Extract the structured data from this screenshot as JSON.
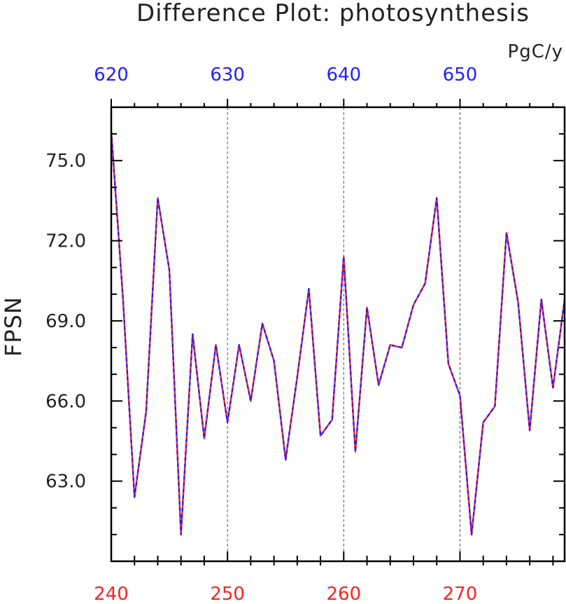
{
  "chart_data": {
    "type": "line",
    "title": "Difference Plot: photosynthesis",
    "units": "PgC/y",
    "ylabel": "FPSN",
    "xlabel": "",
    "ylim": [
      60.0,
      77.0
    ],
    "ytick_values": [
      63.0,
      66.0,
      69.0,
      72.0,
      75.0
    ],
    "ytick_labels": [
      "63.0",
      "66.0",
      "69.0",
      "72.0",
      "75.0"
    ],
    "x_bottom": {
      "color": "#ff2020",
      "xlim": [
        240,
        279
      ],
      "tick_values": [
        240,
        250,
        260,
        270
      ],
      "tick_labels": [
        "240",
        "250",
        "260",
        "270"
      ]
    },
    "x_top": {
      "color": "#2020ff",
      "xlim": [
        620,
        659
      ],
      "tick_values": [
        620,
        630,
        640,
        650
      ],
      "tick_labels": [
        "620",
        "630",
        "640",
        "650"
      ]
    },
    "grid": "vertical dashed at major bottom ticks",
    "series": [
      {
        "color": "#ff2020",
        "style": "solid",
        "x": [
          240,
          241,
          242,
          243,
          244,
          245,
          246,
          247,
          248,
          249,
          250,
          251,
          252,
          253,
          254,
          255,
          256,
          257,
          258,
          259,
          260,
          261,
          262,
          263,
          264,
          265,
          266,
          267,
          268,
          269,
          270,
          271,
          272,
          273,
          274,
          275,
          276,
          277,
          278,
          279
        ],
        "y": [
          76.1,
          69.9,
          62.4,
          65.6,
          73.6,
          70.9,
          61.0,
          68.5,
          64.6,
          68.1,
          65.2,
          68.1,
          66.0,
          68.9,
          67.5,
          63.8,
          66.9,
          70.2,
          64.7,
          65.3,
          71.4,
          64.1,
          69.5,
          66.6,
          68.1,
          68.0,
          69.6,
          70.4,
          73.6,
          67.4,
          66.2,
          61.0,
          65.2,
          65.8,
          72.3,
          69.7,
          64.9,
          69.8,
          66.5,
          69.8
        ]
      },
      {
        "color": "#2020ff",
        "style": "dashed",
        "x": [
          620,
          621,
          622,
          623,
          624,
          625,
          626,
          627,
          628,
          629,
          630,
          631,
          632,
          633,
          634,
          635,
          636,
          637,
          638,
          639,
          640,
          641,
          642,
          643,
          644,
          645,
          646,
          647,
          648,
          649,
          650,
          651,
          652,
          653,
          654,
          655,
          656,
          657,
          658,
          659
        ],
        "y": [
          76.1,
          69.9,
          62.4,
          65.6,
          73.6,
          70.9,
          61.0,
          68.5,
          64.6,
          68.1,
          65.2,
          68.1,
          66.0,
          68.9,
          67.5,
          63.8,
          66.9,
          70.2,
          64.7,
          65.3,
          71.4,
          64.1,
          69.5,
          66.6,
          68.1,
          68.0,
          69.6,
          70.4,
          73.6,
          67.4,
          66.2,
          61.0,
          65.2,
          65.8,
          72.3,
          69.7,
          64.9,
          69.8,
          66.5,
          69.8
        ]
      }
    ]
  }
}
